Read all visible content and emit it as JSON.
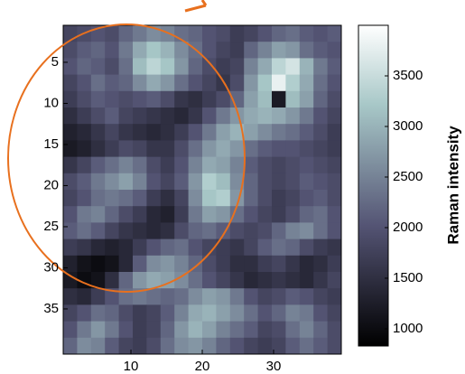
{
  "chart_data": {
    "type": "heatmap",
    "colormap": "bone",
    "xlim": [
      0.5,
      39.5
    ],
    "ylim": [
      0.5,
      40.5
    ],
    "y_reversed": true,
    "xticks": [
      10,
      20,
      30
    ],
    "yticks": [
      5,
      10,
      15,
      20,
      25,
      30,
      35
    ],
    "clim": [
      830,
      4000
    ],
    "colorbar_ticks": [
      1000,
      1500,
      2000,
      2500,
      3000,
      3500
    ],
    "colorbar_label": "Raman intensity",
    "z": [
      [
        1800,
        1900,
        2000,
        1900,
        2200,
        2400,
        2600,
        2500,
        2300,
        2200,
        2000,
        1900,
        1700,
        1800,
        2000,
        2200,
        2300,
        2100,
        2000,
        2100
      ],
      [
        1900,
        2100,
        2200,
        2000,
        2400,
        2900,
        3200,
        3000,
        2600,
        2300,
        2000,
        1800,
        1700,
        2200,
        2500,
        2800,
        2700,
        2300,
        2100,
        2000
      ],
      [
        2000,
        2200,
        2100,
        1900,
        2300,
        3100,
        3400,
        3200,
        2700,
        2200,
        1900,
        1700,
        1800,
        2500,
        2900,
        3400,
        3600,
        3000,
        2400,
        2100
      ],
      [
        1800,
        2000,
        2300,
        2100,
        2200,
        2600,
        2900,
        2700,
        2300,
        2000,
        1800,
        1600,
        1900,
        2700,
        3200,
        3800,
        3300,
        2900,
        2300,
        2000
      ],
      [
        1700,
        1900,
        2100,
        2000,
        1900,
        2000,
        2100,
        1900,
        1600,
        1500,
        1700,
        1900,
        2200,
        2800,
        3100,
        1200,
        3100,
        2800,
        2200,
        1900
      ],
      [
        1500,
        1700,
        1900,
        2100,
        1800,
        1700,
        1600,
        1500,
        1400,
        1600,
        2000,
        2400,
        2700,
        2900,
        3000,
        2900,
        2700,
        2400,
        2000,
        1800
      ],
      [
        1300,
        1400,
        1600,
        1800,
        1600,
        1500,
        1400,
        1500,
        1700,
        2000,
        2400,
        2800,
        3000,
        2800,
        2600,
        2400,
        2300,
        2100,
        1900,
        1700
      ],
      [
        1200,
        1300,
        1500,
        1700,
        1900,
        1800,
        1600,
        1600,
        1900,
        2300,
        2700,
        2900,
        2700,
        2300,
        2100,
        2000,
        2000,
        1900,
        1800,
        1700
      ],
      [
        1600,
        1800,
        2100,
        2300,
        2500,
        2300,
        1900,
        1700,
        2000,
        2500,
        2900,
        2800,
        2500,
        2100,
        1900,
        1800,
        1900,
        2000,
        1900,
        1800
      ],
      [
        1900,
        2100,
        2400,
        2600,
        2800,
        2500,
        2000,
        1800,
        2100,
        2700,
        3300,
        3100,
        2600,
        2200,
        1900,
        1800,
        1900,
        2100,
        2000,
        1900
      ],
      [
        1800,
        2000,
        2300,
        2400,
        2300,
        2100,
        1700,
        1500,
        1800,
        2600,
        3200,
        3300,
        2700,
        2200,
        1900,
        1700,
        1800,
        2000,
        2100,
        1900
      ],
      [
        2000,
        2400,
        2500,
        2200,
        1900,
        1700,
        1400,
        1300,
        1700,
        2400,
        2800,
        2700,
        2300,
        2000,
        1800,
        1700,
        1900,
        2200,
        2300,
        2000
      ],
      [
        2100,
        2300,
        2100,
        1800,
        1600,
        1500,
        1400,
        1500,
        1900,
        2200,
        2300,
        2100,
        1900,
        1800,
        1900,
        2200,
        2500,
        2600,
        2300,
        2000
      ],
      [
        1700,
        1600,
        1400,
        1300,
        1400,
        1700,
        2000,
        2200,
        2300,
        2000,
        1800,
        1700,
        1600,
        1800,
        2100,
        2300,
        2200,
        1900,
        1700,
        1600
      ],
      [
        1300,
        1100,
        1000,
        1100,
        1400,
        2100,
        2600,
        2700,
        2500,
        2200,
        1900,
        1700,
        1500,
        1500,
        1700,
        1800,
        1600,
        1400,
        1500,
        1700
      ],
      [
        1200,
        1000,
        1100,
        1500,
        2200,
        2700,
        2900,
        2800,
        2600,
        2300,
        2000,
        1800,
        1600,
        1400,
        1500,
        1600,
        1500,
        1400,
        1600,
        1800
      ],
      [
        1500,
        1400,
        1700,
        2000,
        2300,
        2400,
        2300,
        2200,
        2300,
        2600,
        2800,
        2700,
        2400,
        2000,
        1800,
        1900,
        2100,
        2000,
        1800,
        1700
      ],
      [
        1800,
        2000,
        2300,
        2200,
        1900,
        1700,
        1800,
        2100,
        2500,
        2900,
        3000,
        2800,
        2600,
        2300,
        2000,
        2200,
        2500,
        2400,
        2000,
        1800
      ],
      [
        2000,
        2400,
        2700,
        2400,
        2000,
        1700,
        1800,
        2200,
        2700,
        3000,
        2800,
        2500,
        2300,
        2100,
        1800,
        1900,
        2300,
        2500,
        2200,
        1900
      ],
      [
        2200,
        2600,
        2500,
        2100,
        1800,
        1700,
        1900,
        2300,
        2600,
        2700,
        2500,
        2200,
        2000,
        1800,
        1700,
        1800,
        2100,
        2300,
        2100,
        1900
      ]
    ]
  }
}
